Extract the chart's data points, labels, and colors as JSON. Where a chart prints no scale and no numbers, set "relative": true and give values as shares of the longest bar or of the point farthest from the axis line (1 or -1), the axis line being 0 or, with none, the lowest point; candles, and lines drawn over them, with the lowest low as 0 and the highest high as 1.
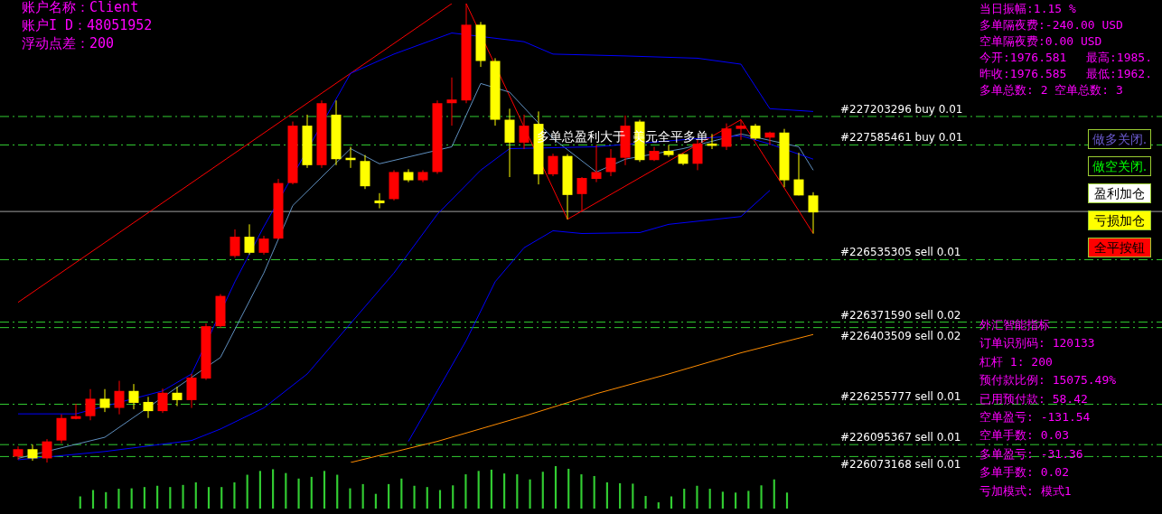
{
  "chart_data": [
    {
      "type": "candlestick",
      "relative": true,
      "tick_labels": false,
      "legend": false,
      "categories": [
        null,
        null,
        null,
        null,
        null,
        null,
        null,
        null,
        null,
        null,
        null,
        null,
        null,
        null,
        null,
        null,
        null,
        null,
        null,
        null,
        null,
        null,
        null,
        null,
        null,
        null,
        null,
        null,
        null,
        null,
        null,
        null,
        null,
        null,
        null,
        null,
        null,
        null,
        null,
        null,
        null,
        null,
        null,
        null,
        null,
        null,
        null,
        null,
        null,
        null,
        null,
        null,
        null,
        null,
        null,
        null
      ],
      "ohlc": [
        [
          0.013,
          0.035,
          0.006,
          0.029
        ],
        [
          0.029,
          0.039,
          0.004,
          0.009
        ],
        [
          0.009,
          0.051,
          0,
          0.046
        ],
        [
          0.048,
          0.105,
          0.042,
          0.097
        ],
        [
          0.095,
          0.128,
          0.094,
          0.101
        ],
        [
          0.101,
          0.16,
          0.092,
          0.139
        ],
        [
          0.139,
          0.16,
          0.11,
          0.119
        ],
        [
          0.119,
          0.178,
          0.105,
          0.156
        ],
        [
          0.156,
          0.171,
          0.116,
          0.13
        ],
        [
          0.132,
          0.143,
          0.097,
          0.112
        ],
        [
          0.112,
          0.161,
          0.108,
          0.152
        ],
        [
          0.152,
          0.165,
          0.123,
          0.136
        ],
        [
          0.136,
          0.193,
          0.119,
          0.185
        ],
        [
          0.183,
          0.303,
          0.18,
          0.297
        ],
        [
          0.297,
          0.367,
          0.294,
          0.363
        ],
        [
          0.45,
          0.508,
          0.446,
          0.492
        ],
        [
          0.492,
          0.519,
          0.453,
          0.457
        ],
        [
          0.457,
          0.494,
          0.453,
          0.488
        ],
        [
          0.488,
          0.618,
          0.486,
          0.609
        ],
        [
          0.609,
          0.743,
          0.606,
          0.734
        ],
        [
          0.734,
          0.758,
          0.642,
          0.648
        ],
        [
          0.648,
          0.789,
          0.642,
          0.783
        ],
        [
          0.758,
          0.789,
          0.648,
          0.661
        ],
        [
          0.664,
          0.688,
          0.642,
          0.659
        ],
        [
          0.657,
          0.67,
          0.596,
          0.602
        ],
        [
          0.571,
          0.587,
          0.554,
          0.565
        ],
        [
          0.574,
          0.637,
          0.571,
          0.633
        ],
        [
          0.633,
          0.639,
          0.611,
          0.615
        ],
        [
          0.615,
          0.637,
          0.611,
          0.633
        ],
        [
          0.633,
          0.789,
          0.629,
          0.783
        ],
        [
          0.783,
          0.839,
          0.734,
          0.791
        ],
        [
          0.789,
          1,
          0.783,
          0.954
        ],
        [
          0.954,
          0.96,
          0.862,
          0.875
        ],
        [
          0.875,
          0.881,
          0.734,
          0.747
        ],
        [
          0.747,
          0.771,
          0.622,
          0.697
        ],
        [
          0.697,
          0.758,
          0.683,
          0.734
        ],
        [
          0.738,
          0.765,
          0.606,
          0.628
        ],
        [
          0.628,
          0.673,
          0.624,
          0.668
        ],
        [
          0.668,
          0.672,
          0.53,
          0.583
        ],
        [
          0.585,
          0.622,
          0.547,
          0.62
        ],
        [
          0.618,
          0.692,
          0.611,
          0.633
        ],
        [
          0.633,
          0.683,
          0.624,
          0.664
        ],
        [
          0.664,
          0.756,
          0.648,
          0.734
        ],
        [
          0.743,
          0.747,
          0.655,
          0.659
        ],
        [
          0.659,
          0.688,
          0.657,
          0.679
        ],
        [
          0.679,
          0.692,
          0.666,
          0.67
        ],
        [
          0.672,
          0.673,
          0.648,
          0.651
        ],
        [
          0.651,
          0.703,
          0.637,
          0.695
        ],
        [
          0.695,
          0.716,
          0.683,
          0.69
        ],
        [
          0.688,
          0.739,
          0.681,
          0.728
        ],
        [
          0.727,
          0.747,
          0.703,
          0.734
        ],
        [
          0.734,
          0.738,
          0.703,
          0.706
        ],
        [
          0.708,
          0.721,
          0.692,
          0.719
        ],
        [
          0.719,
          0.727,
          0.6,
          0.615
        ],
        [
          0.617,
          0.675,
          0.582,
          0.582
        ],
        [
          0.582,
          0.589,
          0.499,
          0.545
        ]
      ],
      "colors": [
        "#ff0000",
        "#ffff00",
        "#ff0000",
        "#ff0000",
        "#ff0000",
        "#ff0000",
        "#ffff00",
        "#ff0000",
        "#ffff00",
        "#ffff00",
        "#ff0000",
        "#ffff00",
        "#ff0000",
        "#ff0000",
        "#ff0000",
        "#ff0000",
        "#ffff00",
        "#ff0000",
        "#ff0000",
        "#ff0000",
        "#ffff00",
        "#ff0000",
        "#ffff00",
        "#ffff00",
        "#ffff00",
        "#ffff00",
        "#ff0000",
        "#ffff00",
        "#ff0000",
        "#ff0000",
        "#ff0000",
        "#ff0000",
        "#ffff00",
        "#ffff00",
        "#ffff00",
        "#ff0000",
        "#ffff00",
        "#ff0000",
        "#ffff00",
        "#ff0000",
        "#ff0000",
        "#ff0000",
        "#ff0000",
        "#ffff00",
        "#ff0000",
        "#ffff00",
        "#ffff00",
        "#ff0000",
        "#ffff00",
        "#ff0000",
        "#ff0000",
        "#ffff00",
        "#ff0000",
        "#ffff00",
        "#ffff00",
        "#ffff00"
      ],
      "series": [
        {
          "type": "line",
          "color": "#ff8c00",
          "values": [
            null,
            null,
            null,
            null,
            null,
            null,
            null,
            null,
            null,
            null,
            null,
            null,
            null,
            null,
            null,
            null,
            null,
            null,
            null,
            null,
            null,
            null,
            null,
            0,
            null,
            null,
            null,
            null,
            null,
            0.046,
            null,
            null,
            null,
            null,
            null,
            0.101,
            null,
            null,
            null,
            null,
            0.15,
            null,
            null,
            null,
            null,
            0.193,
            null,
            null,
            null,
            null,
            0.239,
            null,
            null,
            null,
            null,
            0.279
          ]
        },
        {
          "type": "line",
          "color": "#0000ff",
          "values": [
            0.106,
            null,
            null,
            null,
            0.106,
            null,
            null,
            null,
            null,
            null,
            0.156,
            null,
            0.193,
            null,
            null,
            0.394,
            null,
            0.514,
            null,
            null,
            null,
            null,
            null,
            0.848,
            null,
            null,
            0.89,
            null,
            null,
            null,
            0.936,
            null,
            null,
            null,
            null,
            0.917,
            null,
            0.89,
            null,
            null,
            null,
            null,
            0.886,
            null,
            null,
            null,
            null,
            0.881,
            null,
            null,
            0.868,
            null,
            0.771,
            null,
            null,
            0.765
          ]
        },
        {
          "type": "line",
          "color": "#0000ff",
          "values": [
            0.006,
            null,
            null,
            null,
            null,
            null,
            0.024,
            null,
            null,
            null,
            null,
            null,
            0.048,
            null,
            0.073,
            null,
            null,
            0.119,
            null,
            null,
            0.193,
            null,
            null,
            0.303,
            null,
            null,
            0.413,
            null,
            null,
            0.541,
            null,
            null,
            0.637,
            null,
            0.684,
            null,
            null,
            null,
            null,
            null,
            0.688,
            null,
            null,
            null,
            null,
            null,
            null,
            0.706,
            null,
            null,
            0.712,
            null,
            0.694,
            null,
            null,
            0.661
          ]
        },
        {
          "type": "line",
          "color": "#0000ff",
          "values": [
            null,
            null,
            null,
            null,
            null,
            null,
            null,
            null,
            null,
            null,
            null,
            null,
            null,
            null,
            null,
            null,
            null,
            null,
            null,
            null,
            null,
            null,
            null,
            null,
            null,
            null,
            null,
            0.046,
            null,
            0.156,
            null,
            0.266,
            null,
            0.394,
            null,
            0.468,
            null,
            0.505,
            null,
            0.499,
            null,
            null,
            null,
            0.501,
            null,
            0.519,
            null,
            null,
            null,
            null,
            0.536,
            null,
            0.593,
            null,
            null,
            null
          ]
        },
        {
          "type": "line",
          "color": "#5f8fbf",
          "values": [
            0.009,
            null,
            null,
            null,
            null,
            null,
            0.055,
            null,
            null,
            null,
            null,
            null,
            null,
            null,
            0.229,
            null,
            null,
            0.413,
            null,
            0.56,
            null,
            null,
            null,
            0.684,
            null,
            0.651,
            null,
            null,
            null,
            null,
            0.688,
            null,
            0.826,
            null,
            0.807,
            null,
            null,
            0.706,
            null,
            null,
            0.633,
            null,
            0.661,
            null,
            null,
            null,
            0.684,
            null,
            null,
            null,
            0.716,
            null,
            null,
            null,
            0.688,
            0.637
          ]
        },
        {
          "type": "line",
          "color": "#ff0000",
          "values": [
            null,
            null,
            null,
            null,
            null,
            null,
            null,
            null,
            null,
            null,
            null,
            null,
            null,
            null,
            null,
            null,
            null,
            null,
            null,
            null,
            null,
            null,
            null,
            null,
            null,
            null,
            null,
            null,
            null,
            null,
            null,
            1,
            null,
            null,
            null,
            null,
            null,
            null,
            0.53,
            null,
            null,
            null,
            null,
            null,
            null,
            null,
            null,
            null,
            null,
            null,
            0.747,
            null,
            null,
            null,
            null,
            0.499
          ]
        },
        {
          "type": "line",
          "color": "#ff0000",
          "values": [
            0.349,
            null,
            null,
            null,
            null,
            null,
            null,
            null,
            null,
            null,
            null,
            null,
            null,
            null,
            null,
            null,
            null,
            null,
            null,
            null,
            null,
            null,
            null,
            null,
            null,
            null,
            null,
            null,
            null,
            null,
            1,
            null,
            null,
            null,
            null,
            null,
            null,
            null,
            null,
            null,
            null,
            null,
            null,
            null,
            null,
            null,
            null,
            null,
            null,
            null,
            null,
            null,
            null,
            null,
            null,
            null
          ]
        }
      ],
      "ref_lines": [
        {
          "axis": "y",
          "value": 0.754,
          "label": "#227203296 buy 0.01",
          "color": "#32cd32",
          "line_style": "dashed"
        },
        {
          "axis": "y",
          "value": 0.692,
          "label": "#227585461 buy 0.01",
          "color": "#32cd32",
          "line_style": "dashed"
        },
        {
          "axis": "y",
          "value": 0.547,
          "label": null,
          "color": "#a0a0a0",
          "line_style": "solid"
        },
        {
          "axis": "y",
          "value": 0.442,
          "label": "#226535305 sell 0.01",
          "color": "#32cd32",
          "line_style": "dashed"
        },
        {
          "axis": "y",
          "value": 0.306,
          "label": "#226371590 sell 0.02",
          "color": "#32cd32",
          "line_style": "dashed"
        },
        {
          "axis": "y",
          "value": 0.294,
          "label": "#226403509 sell 0.02",
          "color": "#32cd32",
          "line_style": "dashed"
        },
        {
          "axis": "y",
          "value": 0.127,
          "label": "#226255777 sell 0.01",
          "color": "#32cd32",
          "line_style": "dashed"
        },
        {
          "axis": "y",
          "value": 0.039,
          "label": "#226095367 sell 0.01",
          "color": "#32cd32",
          "line_style": "dashed"
        },
        {
          "axis": "y",
          "value": 0.013,
          "label": "#226073168 sell 0.01",
          "color": "#32cd32",
          "line_style": "dashed"
        }
      ],
      "annotations": [
        "账户名称：Client",
        "账户I D：48051952",
        "浮动点差：200",
        "多单总盈利大于 美元全平多单",
        "当日振幅:1.15 %",
        "多单隔夜费:-240.00 USD",
        "空单隔夜费:0.00 USD",
        "今开:1976.581",
        "最高:1985.",
        "昨收:1976.585",
        "最低:1962.",
        "多单总数: 2 空单总数: 3",
        "做多关闭.",
        "做空关闭.",
        "盈利加仓",
        "亏损加仓",
        "全平按钮",
        "外汇智能指标",
        "订单识别码: 120133",
        "杠杆 1: 200",
        "预付款比例: 15075.49%",
        "已用预付款: 58.42",
        "空单盈亏: -131.54",
        "空单手数: 0.03",
        "多单盈亏: -31.36",
        "多单手数: 0.02",
        "亏加模式: 模式1"
      ]
    },
    {
      "type": "bar",
      "relative": true,
      "tick_labels": false,
      "color": "#32cd32",
      "categories": [
        null,
        null,
        null,
        null,
        null,
        null,
        null,
        null,
        null,
        null,
        null,
        null,
        null,
        null,
        null,
        null,
        null,
        null,
        null,
        null,
        null,
        null,
        null,
        null,
        null,
        null,
        null,
        null,
        null,
        null,
        null,
        null,
        null,
        null,
        null,
        null,
        null,
        null,
        null,
        null,
        null,
        null,
        null,
        null,
        null,
        null,
        null,
        null,
        null,
        null,
        null,
        null,
        null,
        null,
        null,
        null
      ],
      "values": [
        0.28,
        0.43,
        0.38,
        0.46,
        0.47,
        0.5,
        0.53,
        0.5,
        0.55,
        0.61,
        0.5,
        0.5,
        0.61,
        0.79,
        0.88,
        0.92,
        0.83,
        0.7,
        0.74,
        0.88,
        0.79,
        0.47,
        0.57,
        0.34,
        0.57,
        0.7,
        0.53,
        0.5,
        0.43,
        0.54,
        0.8,
        0.88,
        0.91,
        0.82,
        0.8,
        0.68,
        0.86,
        1,
        0.93,
        0.8,
        0.76,
        0.61,
        0.59,
        0.58,
        0.29,
        0.14,
        0.28,
        0.46,
        0.53,
        0.46,
        0.39,
        0.37,
        0.41,
        0.54,
        0.68,
        0.37
      ]
    }
  ]
}
